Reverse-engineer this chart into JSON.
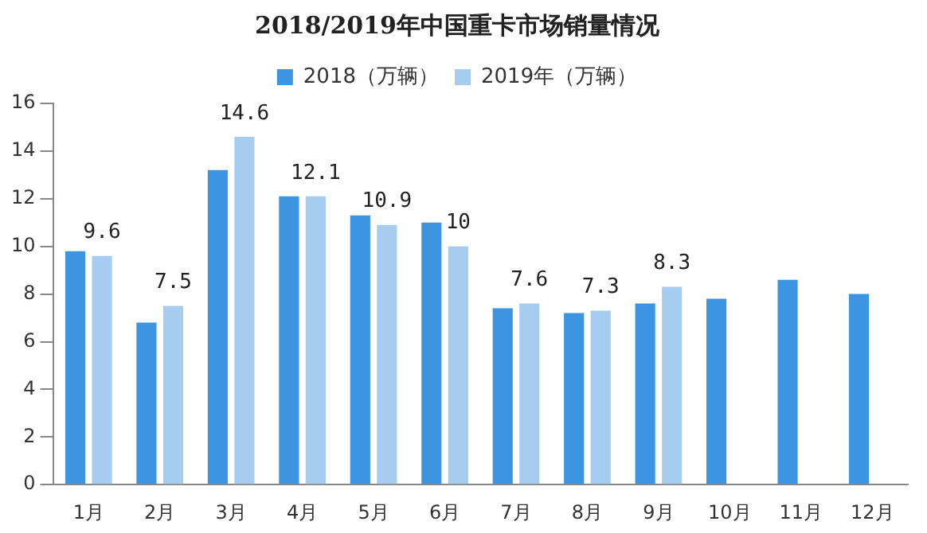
{
  "chart_data": {
    "type": "bar",
    "title": "2018/2019年中国重卡市场销量情况",
    "categories": [
      "1月",
      "2月",
      "3月",
      "4月",
      "5月",
      "6月",
      "7月",
      "8月",
      "9月",
      "10月",
      "11月",
      "12月"
    ],
    "series": [
      {
        "name": "2018（万辆）",
        "color": "#3d94e0",
        "values": [
          9.8,
          6.8,
          13.2,
          12.1,
          11.3,
          11.0,
          7.4,
          7.2,
          7.6,
          7.8,
          8.6,
          8.0
        ]
      },
      {
        "name": "2019年（万辆）",
        "color": "#a6cdf0",
        "values": [
          9.6,
          7.5,
          14.6,
          12.1,
          10.9,
          10,
          7.6,
          7.3,
          8.3,
          null,
          null,
          null
        ],
        "value_labels": [
          "9.6",
          "7.5",
          "14.6",
          "12.1",
          "10.9",
          "10",
          "7.6",
          "7.3",
          "8.3",
          null,
          null,
          null
        ]
      }
    ],
    "ylim": [
      0,
      16
    ],
    "yticks": [
      0,
      2,
      4,
      6,
      8,
      10,
      12,
      14,
      16
    ],
    "grid": false,
    "legend": "top"
  }
}
